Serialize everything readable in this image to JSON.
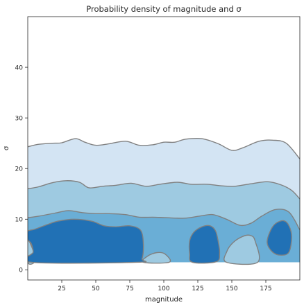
{
  "chart_data": {
    "type": "contour",
    "title": "Probability density of magnitude and σ",
    "xlabel": "magnitude",
    "ylabel": "σ",
    "xlim": [
      0,
      200
    ],
    "ylim": [
      -2,
      50
    ],
    "x_ticks": [
      25,
      50,
      75,
      100,
      125,
      150,
      175
    ],
    "y_ticks": [
      0,
      10,
      20,
      30,
      40
    ],
    "grid": false,
    "legend": "none",
    "colors": {
      "level1": "#d3e4f3",
      "level2": "#9ecae1",
      "level3": "#6aaed6",
      "level4": "#2171b5",
      "contour_line": "#808080",
      "axis": "#262626"
    },
    "levels": [
      {
        "name": "level1",
        "fill": "#d3e4f3",
        "upper_boundary": [
          [
            0,
            24.3
          ],
          [
            8,
            24.8
          ],
          [
            18,
            25
          ],
          [
            25,
            25.1
          ],
          [
            35,
            25.9
          ],
          [
            42,
            25.2
          ],
          [
            50,
            24.6
          ],
          [
            60,
            24.9
          ],
          [
            72,
            25.4
          ],
          [
            82,
            24.6
          ],
          [
            92,
            24.7
          ],
          [
            100,
            25.2
          ],
          [
            108,
            25.2
          ],
          [
            116,
            25.8
          ],
          [
            128,
            25.9
          ],
          [
            140,
            24.9
          ],
          [
            150,
            23.6
          ],
          [
            158,
            24.1
          ],
          [
            170,
            25.4
          ],
          [
            180,
            25.6
          ],
          [
            190,
            25
          ],
          [
            200,
            21.9
          ]
        ],
        "bottom": 1.5
      },
      {
        "name": "level2",
        "fill": "#9ecae1",
        "upper_boundary": [
          [
            0,
            16
          ],
          [
            8,
            16.4
          ],
          [
            18,
            17.2
          ],
          [
            28,
            17.6
          ],
          [
            38,
            17.3
          ],
          [
            45,
            16.2
          ],
          [
            55,
            16.5
          ],
          [
            65,
            16.7
          ],
          [
            76,
            17.1
          ],
          [
            87,
            16.5
          ],
          [
            97,
            16.9
          ],
          [
            110,
            17.3
          ],
          [
            120,
            16.9
          ],
          [
            132,
            16.9
          ],
          [
            142,
            16.6
          ],
          [
            152,
            16.5
          ],
          [
            164,
            17
          ],
          [
            176,
            17.4
          ],
          [
            186,
            16.8
          ],
          [
            194,
            15.7
          ],
          [
            200,
            14
          ]
        ],
        "bottom": 1.5
      },
      {
        "name": "level3",
        "fill": "#6aaed6",
        "upper_boundary": [
          [
            0,
            10.3
          ],
          [
            8,
            10.6
          ],
          [
            20,
            11.2
          ],
          [
            30,
            11.7
          ],
          [
            40,
            11.3
          ],
          [
            50,
            11.1
          ],
          [
            60,
            11.1
          ],
          [
            72,
            10.9
          ],
          [
            82,
            10.4
          ],
          [
            92,
            10.4
          ],
          [
            102,
            10.3
          ],
          [
            115,
            10.2
          ],
          [
            126,
            10.6
          ],
          [
            136,
            10.9
          ],
          [
            146,
            10
          ],
          [
            156,
            8.8
          ],
          [
            164,
            9.2
          ],
          [
            172,
            10.6
          ],
          [
            182,
            11.9
          ],
          [
            192,
            11.4
          ],
          [
            200,
            7.9
          ]
        ],
        "bottom": 1.5,
        "holes": [
          {
            "fill": "#9ecae1",
            "points": [
              [
                0,
                5.8
              ],
              [
                2.5,
                4.8
              ],
              [
                4.5,
                3.2
              ],
              [
                4.8,
                1.5
              ],
              [
                0,
                1.5
              ]
            ]
          },
          {
            "fill": "#9ecae1",
            "points": [
              [
                85,
                1.5
              ],
              [
                88,
                2.7
              ],
              [
                95,
                3.4
              ],
              [
                101,
                3.1
              ],
              [
                104,
                1.5
              ]
            ]
          },
          {
            "fill": "#9ecae1",
            "points": [
              [
                146,
                1.5
              ],
              [
                146.5,
                3.7
              ],
              [
                151,
                5.4
              ],
              [
                158,
                6.6
              ],
              [
                163.5,
                6.8
              ],
              [
                167,
                5.8
              ],
              [
                169,
                1.5
              ]
            ]
          }
        ]
      },
      {
        "name": "level4",
        "fill": "#2171b5",
        "regions": [
          [
            [
              0,
              7.6
            ],
            [
              5,
              8
            ],
            [
              14,
              8.9
            ],
            [
              22,
              9.6
            ],
            [
              34,
              10
            ],
            [
              47,
              9.6
            ],
            [
              56,
              8.7
            ],
            [
              65,
              8.5
            ],
            [
              75,
              8.7
            ],
            [
              83,
              7.8
            ],
            [
              85,
              5
            ],
            [
              84,
              2.2
            ],
            [
              80,
              1.5
            ],
            [
              2.5,
              1.5
            ],
            [
              4,
              3.5
            ],
            [
              2.5,
              5.2
            ],
            [
              0,
              6
            ]
          ],
          [
            [
              119,
              5.7
            ],
            [
              122,
              7.4
            ],
            [
              128,
              8.5
            ],
            [
              134,
              8.7
            ],
            [
              138,
              7.7
            ],
            [
              140,
              5.6
            ],
            [
              141,
              3.3
            ],
            [
              138.5,
              1.6
            ],
            [
              121,
              1.5
            ],
            [
              119,
              3.2
            ]
          ],
          [
            [
              176,
              5.3
            ],
            [
              178,
              7.5
            ],
            [
              182,
              9.1
            ],
            [
              188,
              9.7
            ],
            [
              192,
              8.7
            ],
            [
              194,
              6.5
            ],
            [
              192,
              3.5
            ],
            [
              186,
              2.9
            ],
            [
              180,
              3.5
            ]
          ]
        ]
      }
    ]
  }
}
